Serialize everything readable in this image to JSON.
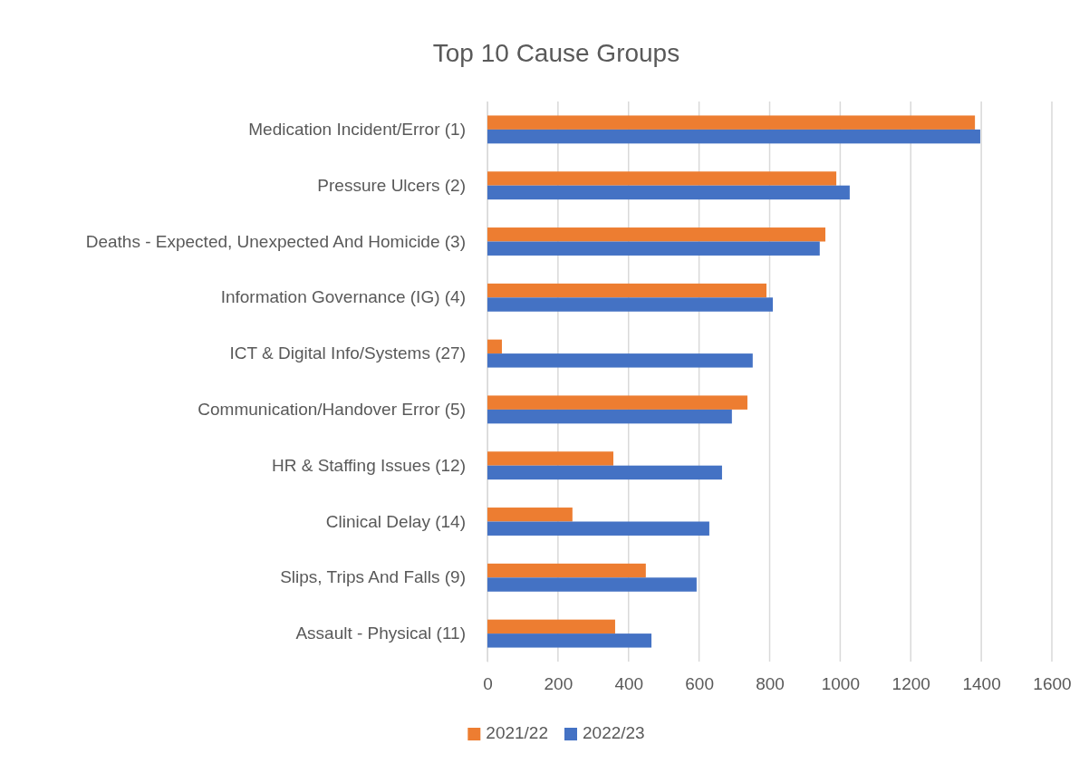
{
  "chart_data": {
    "type": "bar",
    "orientation": "horizontal",
    "title": "Top 10 Cause Groups",
    "categories": [
      "Medication Incident/Error (1)",
      "Pressure Ulcers (2)",
      "Deaths - Expected, Unexpected And Homicide (3)",
      "Information Governance (IG) (4)",
      "ICT & Digital Info/Systems (27)",
      "Communication/Handover Error (5)",
      "HR & Staffing Issues (12)",
      "Clinical Delay (14)",
      "Slips, Trips And Falls (9)",
      "Assault - Physical (11)"
    ],
    "series": [
      {
        "name": "2021/22",
        "color": "#ed7d31",
        "values": [
          1382,
          989,
          958,
          791,
          41,
          737,
          357,
          241,
          449,
          362
        ]
      },
      {
        "name": "2022/23",
        "color": "#4472c4",
        "values": [
          1397,
          1027,
          942,
          809,
          752,
          693,
          665,
          629,
          593,
          465
        ]
      }
    ],
    "xlim": [
      0,
      1600
    ],
    "xticks": [
      0,
      200,
      400,
      600,
      800,
      1000,
      1200,
      1400,
      1600
    ],
    "grid": "x",
    "legend": "bottom"
  }
}
